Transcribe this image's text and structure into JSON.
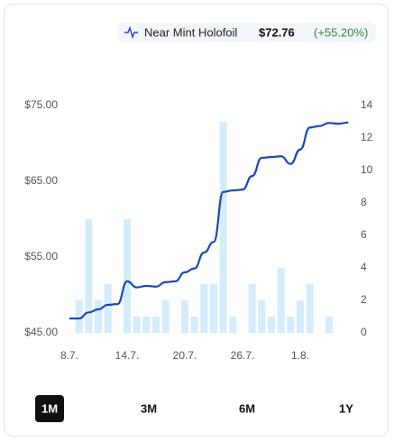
{
  "chart_data": {
    "type": "bar-line",
    "categories": [
      "8.7.",
      null,
      null,
      null,
      null,
      null,
      "14.7.",
      null,
      null,
      null,
      null,
      null,
      "20.7.",
      null,
      null,
      null,
      null,
      null,
      "26.7.",
      null,
      null,
      null,
      null,
      null,
      "1.8.",
      null,
      null,
      null,
      null,
      null
    ],
    "series": [
      {
        "name": "Near Mint Holofoil",
        "type": "line",
        "color": "#1d44c4",
        "axis": "y",
        "values": [
          46.9,
          46.9,
          47.7,
          48.1,
          48.7,
          48.8,
          51.8,
          51.0,
          51.2,
          51.1,
          51.7,
          51.8,
          53.0,
          53.5,
          55.6,
          57.0,
          63.6,
          63.8,
          63.9,
          65.7,
          68.1,
          68.2,
          68.3,
          67.3,
          69.2,
          72.1,
          72.3,
          72.7,
          72.6,
          72.76
        ],
        "value_label": "$72.76",
        "change_label": "(+55.20%)"
      },
      {
        "type": "bar",
        "color": "#d3edfc",
        "axis": "y2",
        "values": [
          0,
          2,
          7,
          2,
          3,
          0,
          7,
          1,
          1,
          1,
          2,
          0,
          2,
          1,
          3,
          3,
          13,
          1,
          0,
          3,
          2,
          1,
          4,
          1,
          2,
          3,
          0,
          1,
          0,
          0
        ]
      }
    ],
    "ylim": [
      45,
      75
    ],
    "yticks": [
      {
        "value": 45,
        "label": "$45.00"
      },
      {
        "value": 55,
        "label": "$55.00"
      },
      {
        "value": 65,
        "label": "$65.00"
      },
      {
        "value": 75,
        "label": "$75.00"
      }
    ],
    "y2lim": [
      0,
      14
    ],
    "y2ticks": [
      0,
      2,
      4,
      6,
      8,
      10,
      12,
      14
    ],
    "ranges": [
      "1M",
      "3M",
      "6M",
      "1Y"
    ],
    "selected_range": 0
  }
}
